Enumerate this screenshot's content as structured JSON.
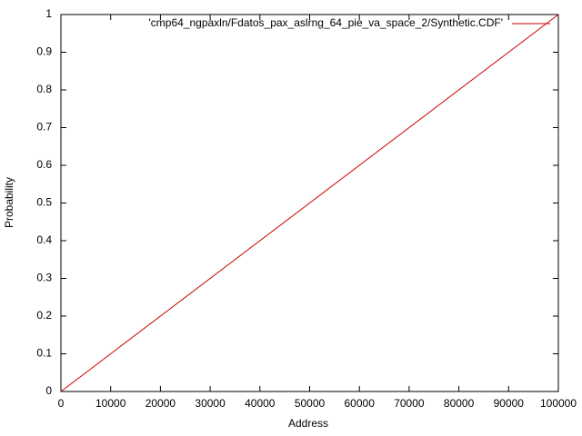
{
  "chart_data": {
    "type": "line",
    "xlabel": "Address",
    "ylabel": "Probability",
    "x": [
      0,
      100000
    ],
    "series": [
      {
        "name": "'cmp64_ngpaxln/Fdatos_pax_aslrng_64_pie_va_space_2/Synthetic.CDF'",
        "color": "#cc0000",
        "values": [
          0,
          1
        ]
      }
    ],
    "xlim": [
      0,
      100000
    ],
    "xticks": [
      0,
      10000,
      20000,
      30000,
      40000,
      50000,
      60000,
      70000,
      80000,
      90000,
      100000
    ],
    "ylim": [
      0,
      1
    ],
    "yticks": [
      0,
      0.1,
      0.2,
      0.3,
      0.4,
      0.5,
      0.6,
      0.7,
      0.8,
      0.9,
      1
    ],
    "grid": false,
    "legend": "top-right"
  }
}
